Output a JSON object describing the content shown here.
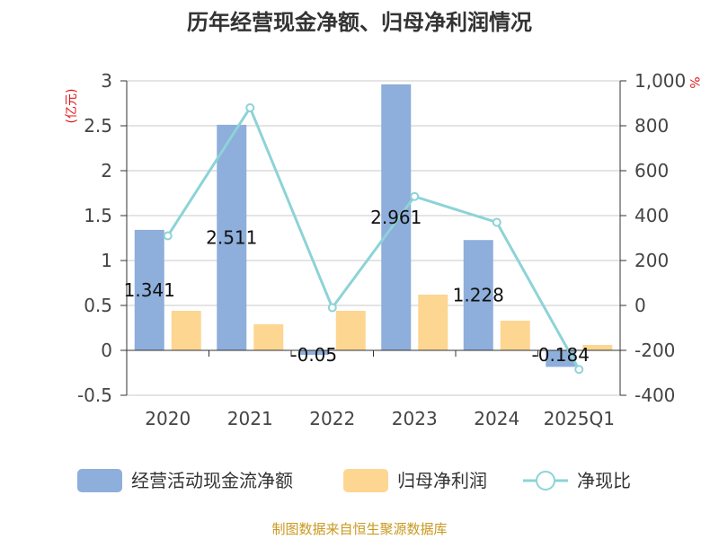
{
  "chart_data": {
    "type": "bar",
    "title": "历年经营现金净额、归母净利润情况",
    "categories": [
      "2020",
      "2021",
      "2022",
      "2023",
      "2024",
      "2025Q1"
    ],
    "series": [
      {
        "name": "经营活动现金流净额",
        "type": "bar",
        "axis": "left",
        "color": "#8eaedb",
        "values": [
          1.341,
          2.511,
          -0.05,
          2.961,
          1.228,
          -0.184
        ]
      },
      {
        "name": "归母净利润",
        "type": "bar",
        "axis": "left",
        "color": "#fdd692",
        "values": [
          0.44,
          0.29,
          0.44,
          0.62,
          0.33,
          0.06
        ]
      },
      {
        "name": "净现比",
        "type": "line",
        "axis": "right",
        "color": "#8dd3d7",
        "values": [
          310,
          880,
          -10,
          485,
          370,
          -285
        ]
      }
    ],
    "data_labels": [
      "1.341",
      "2.511",
      "-0.05",
      "2.961",
      "1.228",
      "-0.184"
    ],
    "y_left": {
      "unit": "(亿元)",
      "ylim": [
        -0.5,
        3
      ],
      "ticks": [
        "-0.5",
        "0",
        "0.5",
        "1",
        "1.5",
        "2",
        "2.5",
        "3"
      ]
    },
    "y_right": {
      "unit": "%",
      "ylim": [
        -400,
        1000
      ],
      "ticks": [
        "-400",
        "-200",
        "0",
        "200",
        "400",
        "600",
        "800",
        "1,000"
      ]
    },
    "grid": true,
    "legend_position": "bottom"
  },
  "source_text": "制图数据来自恒生聚源数据库"
}
